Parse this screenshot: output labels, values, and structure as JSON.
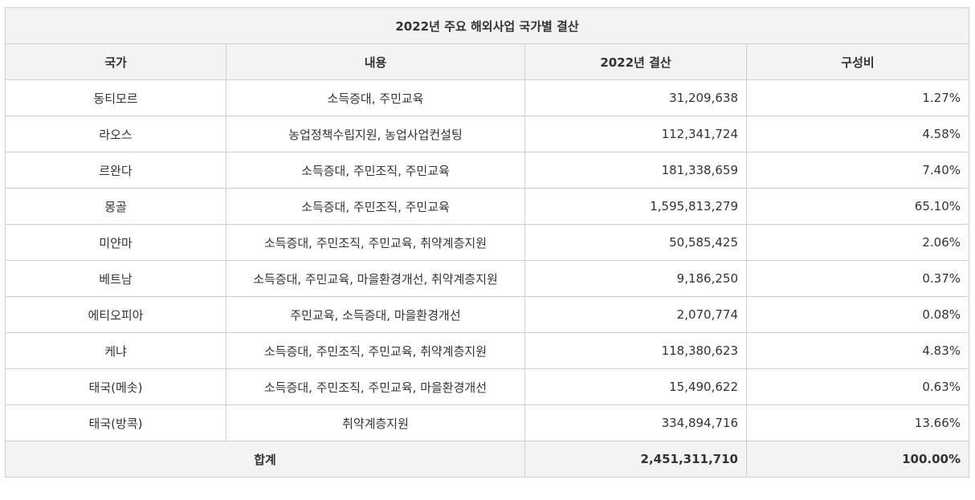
{
  "table": {
    "title": "2022년 주요 해외사업 국가별 결산",
    "headers": [
      "국가",
      "내용",
      "2022년 결산",
      "구성비"
    ],
    "rows": [
      {
        "country": "동티모르",
        "content": "소득증대, 주민교육",
        "amount": "31,209,638",
        "ratio": "1.27%"
      },
      {
        "country": "라오스",
        "content": "농업정책수립지원, 농업사업컨설팅",
        "amount": "112,341,724",
        "ratio": "4.58%"
      },
      {
        "country": "르완다",
        "content": "소득증대, 주민조직, 주민교육",
        "amount": "181,338,659",
        "ratio": "7.40%"
      },
      {
        "country": "몽골",
        "content": "소득증대, 주민조직, 주민교육",
        "amount": "1,595,813,279",
        "ratio": "65.10%"
      },
      {
        "country": "미얀마",
        "content": "소득증대, 주민조직, 주민교육, 취약계층지원",
        "amount": "50,585,425",
        "ratio": "2.06%"
      },
      {
        "country": "베트남",
        "content": "소득증대, 주민교육, 마을환경개선, 취약계층지원",
        "amount": "9,186,250",
        "ratio": "0.37%"
      },
      {
        "country": "에티오피아",
        "content": "주민교육, 소득증대, 마을환경개선",
        "amount": "2,070,774",
        "ratio": "0.08%"
      },
      {
        "country": "케냐",
        "content": "소득증대, 주민조직, 주민교육, 취약계층지원",
        "amount": "118,380,623",
        "ratio": "4.83%"
      },
      {
        "country": "태국(메솟)",
        "content": "소득증대, 주민조직, 주민교육, 마을환경개선",
        "amount": "15,490,622",
        "ratio": "0.63%"
      },
      {
        "country": "태국(방콕)",
        "content": "취약계층지원",
        "amount": "334,894,716",
        "ratio": "13.66%"
      }
    ],
    "total": {
      "label": "합계",
      "amount": "2,451,311,710",
      "ratio": "100.00%"
    }
  }
}
